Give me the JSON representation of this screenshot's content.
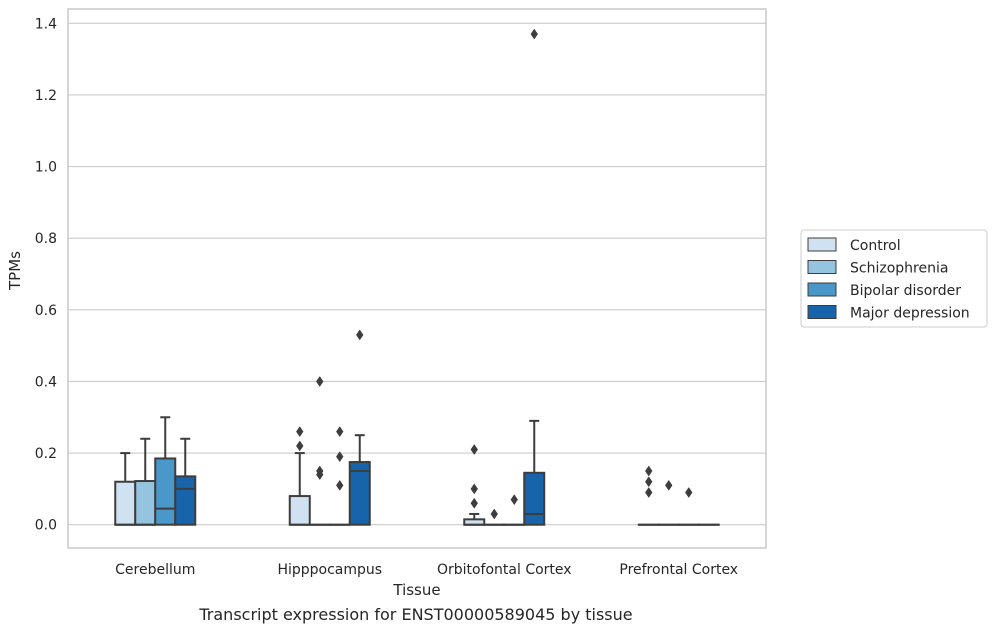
{
  "caption": "Transcript expression for ENST00000589045 by tissue",
  "chart_data": {
    "type": "box",
    "xlabel": "Tissue",
    "ylabel": "TPMs",
    "ylim": [
      -0.065,
      1.44
    ],
    "yticks": [
      0.0,
      0.2,
      0.4,
      0.6,
      0.8,
      1.0,
      1.2,
      1.4
    ],
    "ytick_labels": [
      "0.0",
      "0.2",
      "0.4",
      "0.6",
      "0.8",
      "1.0",
      "1.2",
      "1.4"
    ],
    "grid": "horizontal",
    "legend_position": "right",
    "categories": [
      "Cerebellum",
      "Hipppocampus",
      "Orbitofontal Cortex",
      "Prefrontal Cortex"
    ],
    "series": [
      {
        "name": "Control",
        "color": "#d0e1f2",
        "boxes": [
          {
            "q1": 0.0,
            "median": 0.0,
            "q3": 0.12,
            "whisker_low": 0.0,
            "whisker_high": 0.2,
            "outliers": []
          },
          {
            "q1": 0.0,
            "median": 0.0,
            "q3": 0.08,
            "whisker_low": 0.0,
            "whisker_high": 0.2,
            "outliers": [
              0.22,
              0.26
            ]
          },
          {
            "q1": 0.0,
            "median": 0.0,
            "q3": 0.015,
            "whisker_low": 0.0,
            "whisker_high": 0.03,
            "outliers": [
              0.06,
              0.1,
              0.21
            ]
          },
          {
            "q1": 0.0,
            "median": 0.0,
            "q3": 0.0,
            "whisker_low": 0.0,
            "whisker_high": 0.0,
            "outliers": [
              0.09,
              0.12,
              0.15
            ]
          }
        ]
      },
      {
        "name": "Schizophrenia",
        "color": "#94c4df",
        "boxes": [
          {
            "q1": 0.0,
            "median": 0.0,
            "q3": 0.122,
            "whisker_low": 0.0,
            "whisker_high": 0.24,
            "outliers": []
          },
          {
            "q1": 0.0,
            "median": 0.0,
            "q3": 0.0,
            "whisker_low": 0.0,
            "whisker_high": 0.0,
            "outliers": [
              0.14,
              0.15,
              0.4
            ]
          },
          {
            "q1": 0.0,
            "median": 0.0,
            "q3": 0.0,
            "whisker_low": 0.0,
            "whisker_high": 0.0,
            "outliers": [
              0.03
            ]
          },
          {
            "q1": 0.0,
            "median": 0.0,
            "q3": 0.0,
            "whisker_low": 0.0,
            "whisker_high": 0.0,
            "outliers": [
              0.11
            ]
          }
        ]
      },
      {
        "name": "Bipolar disorder",
        "color": "#4a98c9",
        "boxes": [
          {
            "q1": 0.0,
            "median": 0.045,
            "q3": 0.185,
            "whisker_low": 0.0,
            "whisker_high": 0.3,
            "outliers": []
          },
          {
            "q1": 0.0,
            "median": 0.0,
            "q3": 0.0,
            "whisker_low": 0.0,
            "whisker_high": 0.0,
            "outliers": [
              0.11,
              0.19,
              0.26
            ]
          },
          {
            "q1": 0.0,
            "median": 0.0,
            "q3": 0.0,
            "whisker_low": 0.0,
            "whisker_high": 0.0,
            "outliers": [
              0.07
            ]
          },
          {
            "q1": 0.0,
            "median": 0.0,
            "q3": 0.0,
            "whisker_low": 0.0,
            "whisker_high": 0.0,
            "outliers": [
              0.09
            ]
          }
        ]
      },
      {
        "name": "Major depression",
        "color": "#1764ab",
        "boxes": [
          {
            "q1": 0.0,
            "median": 0.1,
            "q3": 0.135,
            "whisker_low": 0.0,
            "whisker_high": 0.24,
            "outliers": []
          },
          {
            "q1": 0.0,
            "median": 0.15,
            "q3": 0.175,
            "whisker_low": 0.0,
            "whisker_high": 0.25,
            "outliers": [
              0.53
            ]
          },
          {
            "q1": 0.0,
            "median": 0.03,
            "q3": 0.145,
            "whisker_low": 0.0,
            "whisker_high": 0.29,
            "outliers": [
              1.37
            ]
          },
          {
            "q1": 0.0,
            "median": 0.0,
            "q3": 0.0,
            "whisker_low": 0.0,
            "whisker_high": 0.0,
            "outliers": []
          }
        ]
      }
    ]
  }
}
